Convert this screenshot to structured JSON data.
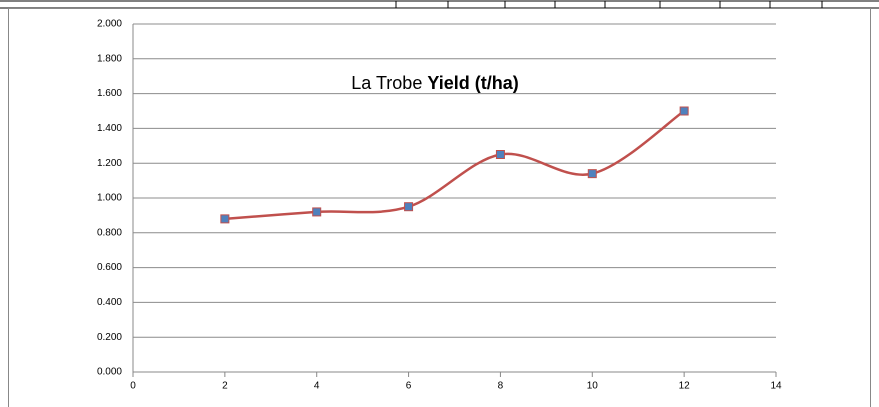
{
  "chart_data": {
    "type": "line",
    "title": "La Trobe",
    "title_bold": "Yield (t/ha)",
    "x": [
      2,
      4,
      6,
      8,
      10,
      12
    ],
    "series": [
      {
        "color": "#c0504d",
        "marker_color": "#4f81bd",
        "values": [
          0.88,
          0.92,
          0.95,
          1.25,
          1.14,
          1.5
        ]
      }
    ],
    "xlim": [
      0,
      14
    ],
    "xticks": [
      0,
      2,
      4,
      6,
      8,
      10,
      12,
      14
    ],
    "ylim": [
      0,
      2
    ],
    "yticks": [
      {
        "value": 0,
        "label": "0.000"
      },
      {
        "value": 0.2,
        "label": "0.200"
      },
      {
        "value": 0.4,
        "label": "0.400"
      },
      {
        "value": 0.6,
        "label": "0.600"
      },
      {
        "value": 0.8,
        "label": "0.800"
      },
      {
        "value": 1,
        "label": "1.000"
      },
      {
        "value": 1.2,
        "label": "1.200"
      },
      {
        "value": 1.4,
        "label": "1.400"
      },
      {
        "value": 1.6,
        "label": "1.600"
      },
      {
        "value": 1.8,
        "label": "1.800"
      },
      {
        "value": 2,
        "label": "2.000"
      }
    ],
    "grid": true,
    "smooth": true
  }
}
